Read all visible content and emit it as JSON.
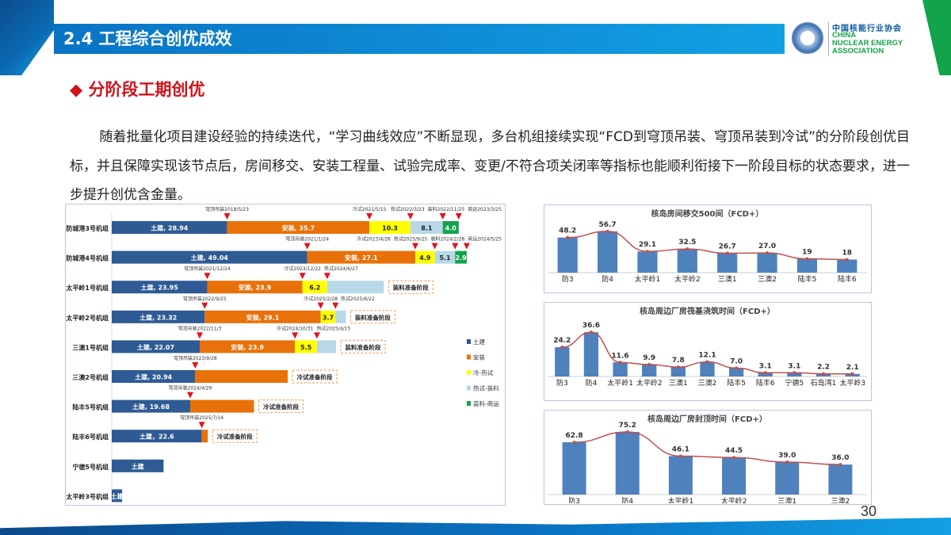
{
  "header": {
    "title": "2.4 工程综合创优成效"
  },
  "logo": {
    "cn": "中国核能行业协会",
    "en1": "CHINA",
    "en2": "NUCLEAR ENERGY",
    "en3": "ASSOCIATION"
  },
  "subtitle": "◆ 分阶段工期创优",
  "paragraph": "随着批量化项目建设经验的持续迭代，“学习曲线效应”不断显现，多台机组接续实现“FCD到穹顶吊装、穹顶吊装到冷试”的分阶段创优目标，并且保障实现该节点后，房间移交、安装工程量、试验完成率、变更/不符合项关闭率等指标也能顺利衔接下一阶段目标的状态要求，进一步提升创优含金量。",
  "page_number": "30",
  "colors": {
    "civil": "#2f5b94",
    "install": "#e8710a",
    "cold_hot": "#ffff00",
    "hot_load": "#b8d8e8",
    "load_op": "#12a34b",
    "marker": "#e0141e",
    "line": "#c0504d",
    "bar": "#4f81bd"
  },
  "chart_data": [
    {
      "type": "bar",
      "subtype": "stacked-horizontal-gantt",
      "legend": [
        "土建",
        "安装",
        "冷-热试",
        "热试-装料",
        "装料-商运"
      ],
      "legend_position": "right",
      "rows": [
        {
          "name": "防城港3号机组",
          "segments": [
            {
              "v": 28.94,
              "label": "土建, 28.94"
            },
            {
              "v": 35.7,
              "label": "安装, 35.7"
            },
            {
              "v": 10.3,
              "label": "10.3"
            },
            {
              "v": 8.1,
              "label": "8.1"
            },
            {
              "v": 4.0,
              "label": "4.0"
            }
          ],
          "markers": [
            "穹顶吊装2018/5/23",
            "冷试2021/5/15",
            "热试2022/3/23",
            "装料2022/11/25",
            "商运2023/3/25"
          ],
          "note": ""
        },
        {
          "name": "防城港4号机组",
          "segments": [
            {
              "v": 49.04,
              "label": "土建, 49.04"
            },
            {
              "v": 27.1,
              "label": "安装, 27.1"
            },
            {
              "v": 4.9,
              "label": "4.9"
            },
            {
              "v": 5.1,
              "label": "5.1"
            },
            {
              "v": 2.9,
              "label": "2.9"
            }
          ],
          "markers": [
            "穹顶吊装2021/1/24",
            "冷试2023/4/28",
            "热试2023/9/25",
            "装料2024/2/28",
            "商运2024/5/25"
          ],
          "note": ""
        },
        {
          "name": "太平岭1号机组",
          "segments": [
            {
              "v": 23.95,
              "label": "土建, 23.95"
            },
            {
              "v": 23.9,
              "label": "安装, 23.9"
            },
            {
              "v": 6.2,
              "label": "6.2"
            },
            {
              "v": 14.2,
              "label": ""
            }
          ],
          "markers": [
            "穹顶吊装2021/12/24",
            "冷试2023/12/22",
            "热试2024/6/27"
          ],
          "note": "装料准备阶段"
        },
        {
          "name": "太平岭2号机组",
          "segments": [
            {
              "v": 23.32,
              "label": "土建, 23.32"
            },
            {
              "v": 29.1,
              "label": "安装, 29.1"
            },
            {
              "v": 3.7,
              "label": "3.7"
            },
            {
              "v": 2.6,
              "label": ""
            }
          ],
          "markers": [
            "穹顶吊装2022/9/25",
            "冷试2025/2/28",
            "热试2025/6/22"
          ],
          "note": "装料准备阶段"
        },
        {
          "name": "三澳1号机组",
          "segments": [
            {
              "v": 22.07,
              "label": "土建, 22.07"
            },
            {
              "v": 23.9,
              "label": "安装, 23.9"
            },
            {
              "v": 5.5,
              "label": "5.5"
            },
            {
              "v": 4.8,
              "label": ""
            }
          ],
          "markers": [
            "穹顶吊装2022/11/3",
            "冷试2024/10/31",
            "热试2025/4/15"
          ],
          "note": "装料准备阶段"
        },
        {
          "name": "三澳2号机组",
          "segments": [
            {
              "v": 20.94,
              "label": "土建, 20.94"
            },
            {
              "v": 23.2,
              "label": ""
            }
          ],
          "markers": [
            "穹顶吊装2023/9/28"
          ],
          "note": "冷试准备阶段"
        },
        {
          "name": "陆丰5号机组",
          "segments": [
            {
              "v": 19.68,
              "label": "土建, 19.68"
            },
            {
              "v": 16.0,
              "label": ""
            }
          ],
          "markers": [
            "穹顶吊装2024/4/29"
          ],
          "note": "冷试准备阶段"
        },
        {
          "name": "陆丰6号机组",
          "segments": [
            {
              "v": 22.6,
              "label": "土建，22.6"
            },
            {
              "v": 1.5,
              "label": ""
            }
          ],
          "markers": [
            "穹顶吊装2025/7/14"
          ],
          "note": "冷试准备阶段"
        },
        {
          "name": "宁德5号机组",
          "segments": [
            {
              "v": 13.0,
              "label": "土建"
            }
          ],
          "markers": [],
          "note": ""
        },
        {
          "name": "太平岭3号机组",
          "segments": [
            {
              "v": 2.6,
              "label": "土建"
            }
          ],
          "markers": [],
          "note": ""
        }
      ]
    },
    {
      "type": "bar",
      "title": "核岛房间移交500间（FCD+）",
      "categories": [
        "防3",
        "防4",
        "太平岭1",
        "太平岭2",
        "三澳1",
        "三澳2",
        "陆丰5",
        "陆丰6"
      ],
      "values": [
        48.2,
        56.7,
        29.1,
        32.5,
        26.7,
        27.0,
        19,
        18
      ],
      "labels": [
        "48.2",
        "56.7",
        "29.1",
        "32.5",
        "26.7",
        "27.0",
        "19",
        "18"
      ],
      "ylim": [
        0,
        62
      ],
      "line_overlay": true
    },
    {
      "type": "bar",
      "title": "核岛周边厂房筏基浇筑时间（FCD+）",
      "categories": [
        "防3",
        "防4",
        "太平岭1",
        "太平岭2",
        "三澳1",
        "三澳2",
        "陆丰5",
        "陆丰6",
        "宁德5",
        "石岛湾1",
        "太平岭3"
      ],
      "values": [
        24.2,
        36.6,
        11.6,
        9.9,
        7.8,
        12.1,
        7.0,
        3.1,
        3.1,
        2.2,
        2.1
      ],
      "labels": [
        "24.2",
        "36.6",
        "11.6",
        "9.9",
        "7.8",
        "12.1",
        "7.0",
        "3.1",
        "3.1",
        "2.2",
        "2.1"
      ],
      "ylim": [
        0,
        40
      ],
      "line_overlay": true
    },
    {
      "type": "bar",
      "title": "核岛周边厂房封顶时间（FCD+）",
      "categories": [
        "防3",
        "防4",
        "太平岭1",
        "太平岭2",
        "三澳1",
        "三澳2"
      ],
      "values": [
        62.8,
        75.2,
        46.1,
        44.5,
        39.0,
        36.0
      ],
      "labels": [
        "62.8",
        "75.2",
        "46.1",
        "44.5",
        "39.0",
        "36.0"
      ],
      "ylim": [
        0,
        78
      ],
      "line_overlay": true
    }
  ]
}
